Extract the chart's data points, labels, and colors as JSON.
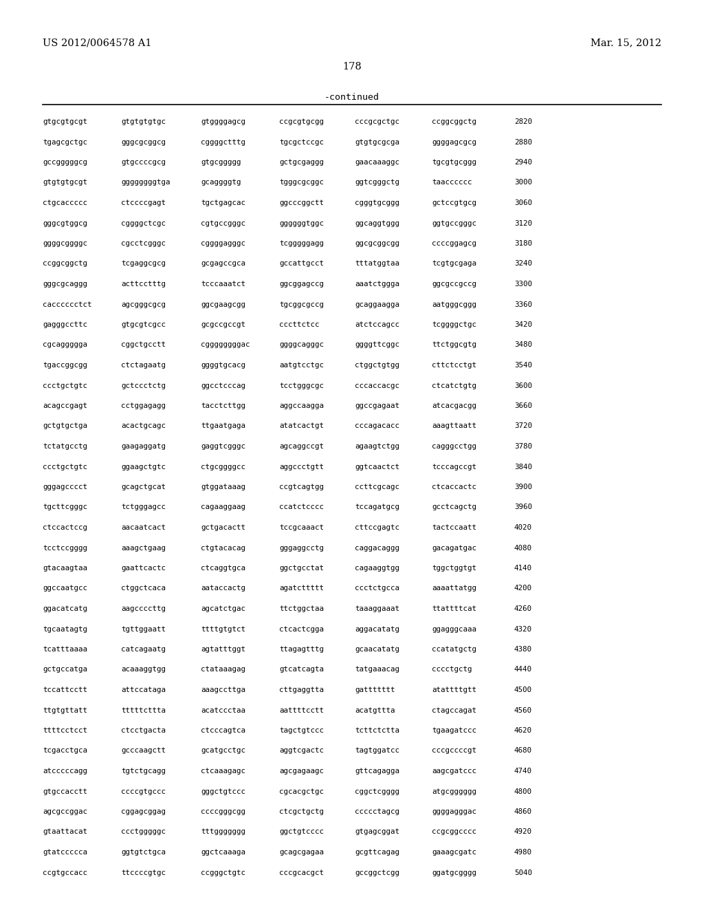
{
  "header_left": "US 2012/0064578 A1",
  "header_right": "Mar. 15, 2012",
  "page_number": "178",
  "continued_label": "-continued",
  "background_color": "#ffffff",
  "text_color": "#000000",
  "sequence_lines": [
    [
      "gtgcgtgcgt",
      "gtgtgtgtgc",
      "gtggggagcg",
      "ccgcgtgcgg",
      "cccgcgctgc",
      "ccggcggctg",
      "2820"
    ],
    [
      "tgagcgctgc",
      "gggcgcggcg",
      "cggggctttg",
      "tgcgctccgc",
      "gtgtgcgcga",
      "ggggagcgcg",
      "2880"
    ],
    [
      "gccgggggcg",
      "gtgccccgcg",
      "gtgcggggg",
      "gctgcgaggg",
      "gaacaaaggc",
      "tgcgtgcggg",
      "2940"
    ],
    [
      "gtgtgtgcgt",
      "ggggggggtga",
      "gcaggggtg",
      "tgggcgcggc",
      "ggtcgggctg",
      "taacccccc",
      "3000"
    ],
    [
      "ctgcaccccc",
      "ctccccgagt",
      "tgctgagcac",
      "ggcccggctt",
      "cgggtgcggg",
      "gctccgtgcg",
      "3060"
    ],
    [
      "gggcgtggcg",
      "cggggctcgc",
      "cgtgccgggc",
      "ggggggtggc",
      "ggcaggtggg",
      "ggtgccgggc",
      "3120"
    ],
    [
      "ggggcggggc",
      "cgcctcgggc",
      "cggggagggc",
      "tcgggggagg",
      "ggcgcggcgg",
      "ccccggagcg",
      "3180"
    ],
    [
      "ccggcggctg",
      "tcgaggcgcg",
      "gcgagccgca",
      "gccattgcct",
      "tttatggtaa",
      "tcgtgcgaga",
      "3240"
    ],
    [
      "gggcgcaggg",
      "acttcctttg",
      "tcccaaatct",
      "ggcggagccg",
      "aaatctggga",
      "ggcgccgccg",
      "3300"
    ],
    [
      "cacccccctct",
      "agcgggcgcg",
      "ggcgaagcgg",
      "tgcggcgccg",
      "gcaggaagga",
      "aatgggcggg",
      "3360"
    ],
    [
      "gagggccttc",
      "gtgcgtcgcc",
      "gcgccgccgt",
      "cccttctcc",
      "atctccagcc",
      "tcggggctgc",
      "3420"
    ],
    [
      "cgcaggggga",
      "cggctgcctt",
      "cggggggggac",
      "ggggcagggc",
      "ggggttcggc",
      "ttctggcgtg",
      "3480"
    ],
    [
      "tgaccggcgg",
      "ctctagaatg",
      "ggggtgcacg",
      "aatgtcctgc",
      "ctggctgtgg",
      "cttctcctgt",
      "3540"
    ],
    [
      "ccctgctgtc",
      "gctccctctg",
      "ggcctcccag",
      "tcctgggcgc",
      "cccaccacgc",
      "ctcatctgtg",
      "3600"
    ],
    [
      "acagccgagt",
      "cctggagagg",
      "tacctcttgg",
      "aggccaagga",
      "ggccgagaat",
      "atcacgacgg",
      "3660"
    ],
    [
      "gctgtgctga",
      "acactgcagc",
      "ttgaatgaga",
      "atatcactgt",
      "cccagacacc",
      "aaagttaatt",
      "3720"
    ],
    [
      "tctatgcctg",
      "gaagaggatg",
      "gaggtcgggc",
      "agcaggccgt",
      "agaagtctgg",
      "cagggcctgg",
      "3780"
    ],
    [
      "ccctgctgtc",
      "ggaagctgtc",
      "ctgcggggcc",
      "aggccctgtt",
      "ggtcaactct",
      "tcccagccgt",
      "3840"
    ],
    [
      "gggagcccct",
      "gcagctgcat",
      "gtggataaag",
      "ccgtcagtgg",
      "ccttcgcagc",
      "ctcaccactc",
      "3900"
    ],
    [
      "tgcttcgggc",
      "tctgggagcc",
      "cagaaggaag",
      "ccatctcccc",
      "tccagatgcg",
      "gcctcagctg",
      "3960"
    ],
    [
      "ctccactccg",
      "aacaatcact",
      "gctgacactt",
      "tccgcaaact",
      "cttccgagtc",
      "tactccaatt",
      "4020"
    ],
    [
      "tcctccgggg",
      "aaagctgaag",
      "ctgtacacag",
      "gggaggcctg",
      "caggacaggg",
      "gacagatgac",
      "4080"
    ],
    [
      "gtacaagtaa",
      "gaattcactc",
      "ctcaggtgca",
      "ggctgcctat",
      "cagaaggtgg",
      "tggctggtgt",
      "4140"
    ],
    [
      "ggccaatgcc",
      "ctggctcaca",
      "aataccactg",
      "agatcttttt",
      "ccctctgcca",
      "aaaattatgg",
      "4200"
    ],
    [
      "ggacatcatg",
      "aagccccttg",
      "agcatctgac",
      "ttctggctaa",
      "taaaggaaat",
      "ttattttcat",
      "4260"
    ],
    [
      "tgcaatagtg",
      "tgttggaatt",
      "ttttgtgtct",
      "ctcactcgga",
      "aggacatatg",
      "ggagggcaaa",
      "4320"
    ],
    [
      "tcatttaaaa",
      "catcagaatg",
      "agtatttggt",
      "ttagagtttg",
      "gcaacatatg",
      "ccatatgctg",
      "4380"
    ],
    [
      "gctgccatga",
      "acaaaggtgg",
      "ctataaagag",
      "gtcatcagta",
      "tatgaaacag",
      "cccctgctg",
      "4440"
    ],
    [
      "tccattcctt",
      "attccataga",
      "aaagccttga",
      "cttgaggtta",
      "gattttttt",
      "atattttgtt",
      "4500"
    ],
    [
      "ttgtgttatt",
      "tttttcttta",
      "acatccctaa",
      "aattttcctt",
      "acatgttta",
      "ctagccagat",
      "4560"
    ],
    [
      "ttttcctcct",
      "ctcctgacta",
      "ctcccagtca",
      "tagctgtccc",
      "tcttctctta",
      "tgaagatccc",
      "4620"
    ],
    [
      "tcgacctgca",
      "gcccaagctt",
      "gcatgcctgc",
      "aggtcgactc",
      "tagtggatcc",
      "cccgccccgt",
      "4680"
    ],
    [
      "atcccccagg",
      "tgtctgcagg",
      "ctcaaagagc",
      "agcgagaagc",
      "gttcagagga",
      "aagcgatccc",
      "4740"
    ],
    [
      "gtgccacctt",
      "ccccgtgccc",
      "gggctgtccc",
      "cgcacgctgc",
      "cggctcgggg",
      "atgcgggggg",
      "4800"
    ],
    [
      "agcgccggac",
      "cggagcggag",
      "ccccgggcgg",
      "ctcgctgctg",
      "ccccctagcg",
      "ggggagggac",
      "4860"
    ],
    [
      "gtaattacat",
      "ccctgggggc",
      "tttggggggg",
      "ggctgtcccc",
      "gtgagcggat",
      "ccgcggcccc",
      "4920"
    ],
    [
      "gtatccccca",
      "ggtgtctgca",
      "ggctcaaaga",
      "gcagcgagaa",
      "gcgttcagag",
      "gaaagcgatc",
      "4980"
    ],
    [
      "ccgtgccacc",
      "ttccccgtgc",
      "ccgggctgtc",
      "cccgcacgct",
      "gccggctcgg",
      "ggatgcgggg",
      "5040"
    ]
  ]
}
